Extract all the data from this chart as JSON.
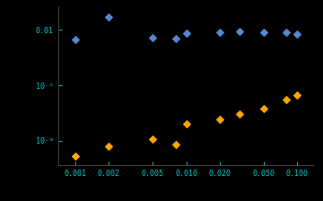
{
  "blue_x": [
    0.001,
    0.002,
    0.005,
    0.008,
    0.01,
    0.02,
    0.03,
    0.05,
    0.08,
    0.1
  ],
  "blue_y": [
    0.003,
    0.05,
    0.004,
    0.0035,
    0.0065,
    0.0075,
    0.0085,
    0.0075,
    0.0075,
    0.006
  ],
  "orange_x": [
    0.001,
    0.002,
    0.005,
    0.008,
    0.01,
    0.02,
    0.03,
    0.05,
    0.08,
    0.1
  ],
  "orange_y": [
    1.5e-09,
    5e-09,
    1.2e-08,
    6e-09,
    8e-08,
    1.4e-07,
    2.8e-07,
    5.5e-07,
    1.8e-06,
    3e-06
  ],
  "blue_color": "#5588CC",
  "orange_color": "#FFA500",
  "background_color": "#000000",
  "tick_color": "#00CCCC",
  "xlim": [
    0.0007,
    0.14
  ],
  "ylim_lo": 5e-10,
  "ylim_hi": 0.2,
  "xticks": [
    0.001,
    0.002,
    0.005,
    0.01,
    0.02,
    0.05,
    0.1
  ],
  "xtick_labels": [
    "0.001",
    "0.002",
    "0.005",
    "0.010",
    "0.020",
    "0.050",
    "0.100"
  ],
  "ytick_vals": [
    1e-08,
    1e-05,
    0.01
  ],
  "ytick_labels": [
    "10⁻⁸",
    "10⁻⁵",
    "0.01"
  ],
  "marker_size": 15
}
